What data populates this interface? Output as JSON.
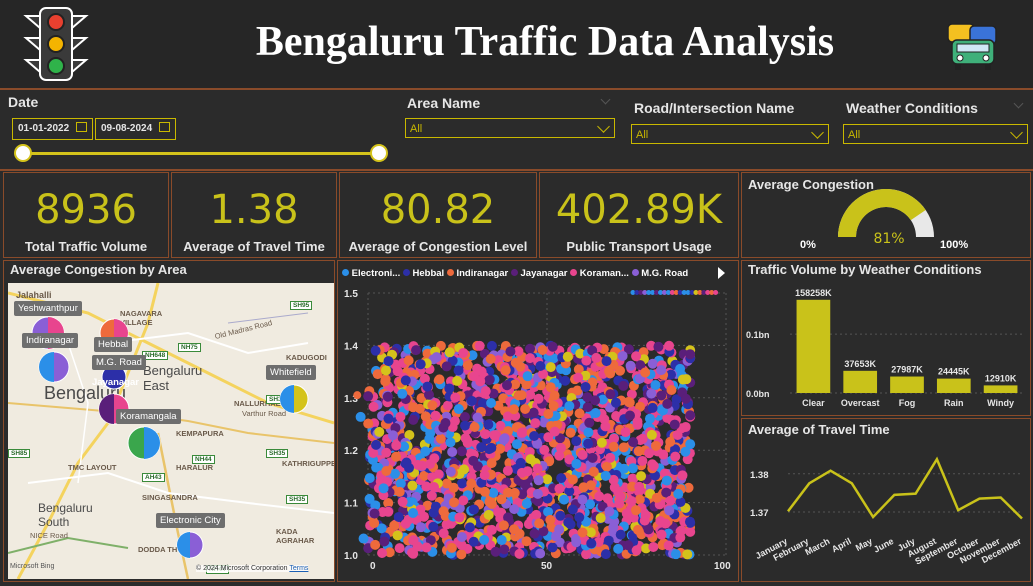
{
  "header": {
    "title": "Bengaluru Traffic Data Analysis"
  },
  "filters": {
    "date_label": "Date",
    "date_from": "01-01-2022",
    "date_to": "09-08-2024",
    "area_label": "Area Name",
    "area_value": "All",
    "road_label": "Road/Intersection Name",
    "road_value": "All",
    "weather_label": "Weather Conditions",
    "weather_value": "All"
  },
  "kpis": [
    {
      "value": "8936",
      "label": "Total Traffic Volume"
    },
    {
      "value": "1.38",
      "label": "Average of Travel Time"
    },
    {
      "value": "80.82",
      "label": "Average of Congestion Level"
    },
    {
      "value": "402.89K",
      "label": "Public Transport Usage"
    }
  ],
  "gauge": {
    "title": "Average Congestion",
    "value_label": "81%",
    "min_label": "0%",
    "max_label": "100%",
    "value": 0.81,
    "color": "#c9c21a"
  },
  "map": {
    "title": "Average Congestion by Area",
    "areas": [
      "Yeshwanthpur",
      "Indiranagar",
      "Hebbal",
      "M.G. Road",
      "Jayanagar",
      "Koramangala",
      "Whitefield",
      "Electronic City"
    ],
    "place_names": [
      "Jalahalli",
      "NAGAVARA VILLAGE",
      "KADUGODI",
      "Bengaluru East",
      "Bengaluru",
      "NALLURHALLI",
      "Varthur Road",
      "KEMPAPURA",
      "TMC LAYOUT",
      "HARALUR",
      "KATHRIGUPPE",
      "SINGASANDRA",
      "Bengaluru South",
      "KADA AGRAHAR",
      "DODDA TH",
      "NICE Road",
      "Old Madras Road"
    ],
    "roads": [
      "SH95",
      "NH75",
      "NH648",
      "SH35",
      "AH43",
      "NH44",
      "SH35",
      "SH35",
      "NH44",
      "SH85"
    ],
    "copyright": "© 2024 Microsoft Corporation",
    "terms": "Terms",
    "bing": "Microsoft Bing"
  },
  "scatter_legend": [
    "Electroni...",
    "Hebbal",
    "Indiranagar",
    "Jayanagar",
    "Koraman...",
    "M.G. Road"
  ],
  "chart_data": [
    {
      "type": "scatter",
      "title": "",
      "x_ticks": [
        "0",
        "50",
        "100"
      ],
      "y_ticks": [
        "1.5",
        "1.4",
        "1.3",
        "1.2",
        "1.1",
        "1.0"
      ],
      "xlim": [
        0,
        100
      ],
      "ylim": [
        1.0,
        1.5
      ],
      "series": [
        {
          "name": "Electroni...",
          "color": "#2b8fe8"
        },
        {
          "name": "Hebbal",
          "color": "#2c2fa8"
        },
        {
          "name": "Indiranagar",
          "color": "#ee6a3c"
        },
        {
          "name": "Jayanagar",
          "color": "#5a1f7a"
        },
        {
          "name": "Koraman...",
          "color": "#e8458e"
        },
        {
          "name": "M.G. Road",
          "color": "#8a5fd6"
        },
        {
          "name": "",
          "color": "#d4c31b"
        }
      ],
      "grid": true
    },
    {
      "type": "bar",
      "title": "Traffic Volume by Weather Conditions",
      "categories": [
        "Clear",
        "Overcast",
        "Fog",
        "Rain",
        "Windy"
      ],
      "values": [
        158258000,
        37653000,
        27987000,
        24445000,
        12910000
      ],
      "data_labels": [
        "158258K",
        "37653K",
        "27987K",
        "24445K",
        "12910K"
      ],
      "y_ticks": [
        "0.1bn",
        "0.0bn"
      ],
      "color": "#c9c21a"
    },
    {
      "type": "line",
      "title": "Average of Travel Time",
      "categories": [
        "January",
        "February",
        "March",
        "April",
        "May",
        "June",
        "July",
        "August",
        "September",
        "October",
        "November",
        "December"
      ],
      "values": [
        1.3702,
        1.3775,
        1.3808,
        1.3775,
        1.3687,
        1.3745,
        1.3748,
        1.3838,
        1.3705,
        1.3735,
        1.3738,
        1.3683
      ],
      "y_ticks": [
        "1.38",
        "1.37"
      ],
      "ylim": [
        1.364,
        1.387
      ],
      "color": "#c9c21a"
    }
  ]
}
